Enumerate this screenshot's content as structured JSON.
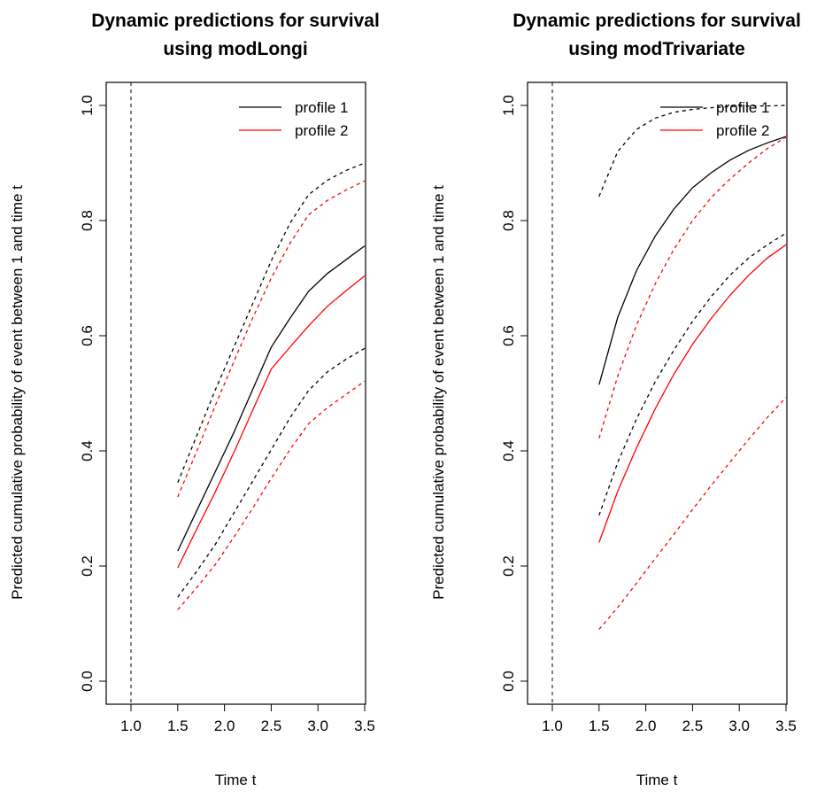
{
  "chart_data": [
    {
      "type": "line",
      "title": [
        "Dynamic predictions for survival",
        "using modLongi"
      ],
      "xlabel": "Time t",
      "ylabel": "Predicted cumulative probability of event between 1 and time t",
      "xlim": [
        0.5,
        3.5
      ],
      "ylim": [
        0.0,
        1.0
      ],
      "xticks": [
        "1.0",
        "1.5",
        "2.0",
        "2.5",
        "3.0",
        "3.5"
      ],
      "yticks": [
        "0.0",
        "0.2",
        "0.4",
        "0.6",
        "0.8",
        "1.0"
      ],
      "vline": 1.0,
      "legend_position": "top-right",
      "legend": [
        {
          "label": "profile 1",
          "color": "#000000"
        },
        {
          "label": "profile 2",
          "color": "#ff0000"
        }
      ],
      "series": [
        {
          "name": "profile 1",
          "color": "#000000",
          "style": "solid",
          "x": [
            1.5,
            1.7,
            1.9,
            2.1,
            2.3,
            2.5,
            2.7,
            2.9,
            3.1,
            3.3,
            3.5
          ],
          "y": [
            0.226,
            0.295,
            0.363,
            0.432,
            0.506,
            0.58,
            0.63,
            0.677,
            0.708,
            0.732,
            0.756
          ]
        },
        {
          "name": "profile 1 lower",
          "color": "#000000",
          "style": "dashed",
          "x": [
            1.5,
            1.7,
            1.9,
            2.1,
            2.3,
            2.5,
            2.7,
            2.9,
            3.1,
            3.3,
            3.5
          ],
          "y": [
            0.146,
            0.19,
            0.237,
            0.292,
            0.347,
            0.402,
            0.457,
            0.505,
            0.537,
            0.559,
            0.578
          ]
        },
        {
          "name": "profile 1 upper",
          "color": "#000000",
          "style": "dashed",
          "x": [
            1.5,
            1.7,
            1.9,
            2.1,
            2.3,
            2.5,
            2.7,
            2.9,
            3.1,
            3.3,
            3.5
          ],
          "y": [
            0.345,
            0.425,
            0.505,
            0.58,
            0.655,
            0.73,
            0.795,
            0.845,
            0.87,
            0.887,
            0.9
          ]
        },
        {
          "name": "profile 2",
          "color": "#ff0000",
          "style": "solid",
          "x": [
            1.5,
            1.7,
            1.9,
            2.1,
            2.3,
            2.5,
            2.7,
            2.9,
            3.1,
            3.3,
            3.5
          ],
          "y": [
            0.197,
            0.263,
            0.328,
            0.397,
            0.47,
            0.542,
            0.58,
            0.617,
            0.651,
            0.678,
            0.704
          ]
        },
        {
          "name": "profile 2 lower",
          "color": "#ff0000",
          "style": "dashed",
          "x": [
            1.5,
            1.7,
            1.9,
            2.1,
            2.3,
            2.5,
            2.7,
            2.9,
            3.1,
            3.3,
            3.5
          ],
          "y": [
            0.124,
            0.162,
            0.202,
            0.25,
            0.3,
            0.352,
            0.402,
            0.447,
            0.475,
            0.498,
            0.521
          ]
        },
        {
          "name": "profile 2 upper",
          "color": "#ff0000",
          "style": "dashed",
          "x": [
            1.5,
            1.7,
            1.9,
            2.1,
            2.3,
            2.5,
            2.7,
            2.9,
            3.1,
            3.3,
            3.5
          ],
          "y": [
            0.32,
            0.398,
            0.478,
            0.555,
            0.63,
            0.7,
            0.76,
            0.81,
            0.835,
            0.853,
            0.869
          ]
        }
      ]
    },
    {
      "type": "line",
      "title": [
        "Dynamic predictions for survival",
        "using modTrivariate"
      ],
      "xlabel": "Time t",
      "ylabel": "Predicted cumulative probability of event between 1 and time t",
      "xlim": [
        0.5,
        3.5
      ],
      "ylim": [
        0.0,
        1.0
      ],
      "xticks": [
        "1.0",
        "1.5",
        "2.0",
        "2.5",
        "3.0",
        "3.5"
      ],
      "yticks": [
        "0.0",
        "0.2",
        "0.4",
        "0.6",
        "0.8",
        "1.0"
      ],
      "vline": 1.0,
      "legend_position": "top-right",
      "legend": [
        {
          "label": "profile 1",
          "color": "#000000"
        },
        {
          "label": "profile 2",
          "color": "#ff0000"
        }
      ],
      "series": [
        {
          "name": "profile 1",
          "color": "#000000",
          "style": "solid",
          "x": [
            1.5,
            1.7,
            1.9,
            2.1,
            2.3,
            2.5,
            2.7,
            2.9,
            3.1,
            3.3,
            3.5
          ],
          "y": [
            0.515,
            0.632,
            0.713,
            0.773,
            0.82,
            0.857,
            0.883,
            0.905,
            0.922,
            0.935,
            0.946
          ]
        },
        {
          "name": "profile 1 lower",
          "color": "#000000",
          "style": "dashed",
          "x": [
            1.5,
            1.7,
            1.9,
            2.1,
            2.3,
            2.5,
            2.7,
            2.9,
            3.1,
            3.3,
            3.5
          ],
          "y": [
            0.288,
            0.38,
            0.455,
            0.52,
            0.575,
            0.625,
            0.668,
            0.705,
            0.735,
            0.758,
            0.778
          ]
        },
        {
          "name": "profile 1 upper",
          "color": "#000000",
          "style": "dashed",
          "x": [
            1.5,
            1.7,
            1.9,
            2.1,
            2.3,
            2.5,
            2.7,
            2.9,
            3.1,
            3.3,
            3.5
          ],
          "y": [
            0.842,
            0.92,
            0.958,
            0.978,
            0.988,
            0.993,
            0.996,
            0.998,
            0.999,
            0.999,
            1.0
          ]
        },
        {
          "name": "profile 2",
          "color": "#ff0000",
          "style": "solid",
          "x": [
            1.5,
            1.7,
            1.9,
            2.1,
            2.3,
            2.5,
            2.7,
            2.9,
            3.1,
            3.3,
            3.5
          ],
          "y": [
            0.241,
            0.33,
            0.405,
            0.473,
            0.533,
            0.585,
            0.63,
            0.67,
            0.705,
            0.735,
            0.758
          ]
        },
        {
          "name": "profile 2 lower",
          "color": "#ff0000",
          "style": "dashed",
          "x": [
            1.5,
            1.7,
            1.9,
            2.1,
            2.3,
            2.5,
            2.7,
            2.9,
            3.1,
            3.3,
            3.5
          ],
          "y": [
            0.09,
            0.128,
            0.17,
            0.213,
            0.255,
            0.298,
            0.34,
            0.38,
            0.42,
            0.458,
            0.493
          ]
        },
        {
          "name": "profile 2 upper",
          "color": "#ff0000",
          "style": "dashed",
          "x": [
            1.5,
            1.7,
            1.9,
            2.1,
            2.3,
            2.5,
            2.7,
            2.9,
            3.1,
            3.3,
            3.5
          ],
          "y": [
            0.422,
            0.53,
            0.618,
            0.69,
            0.75,
            0.8,
            0.84,
            0.872,
            0.9,
            0.925,
            0.945
          ]
        }
      ]
    }
  ]
}
